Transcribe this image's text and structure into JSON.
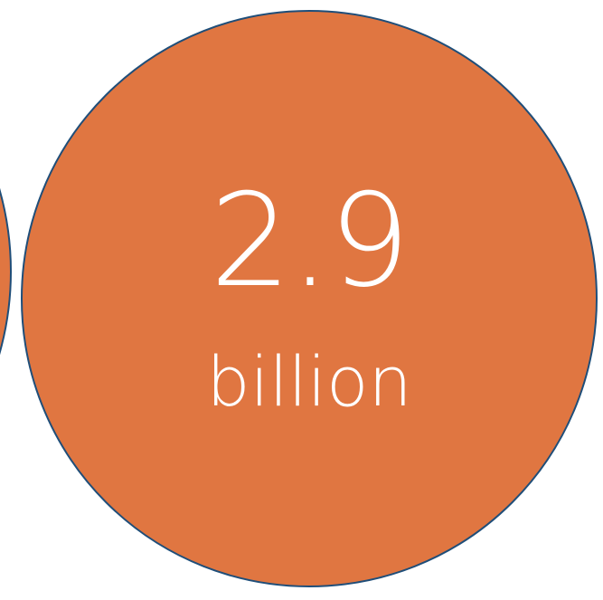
{
  "main_stat": {
    "value": "2.9",
    "unit": "billion"
  },
  "colors": {
    "bubble_fill": "#E07641",
    "bubble_outline": "#1F4E79",
    "text": "#FFFFFF"
  }
}
